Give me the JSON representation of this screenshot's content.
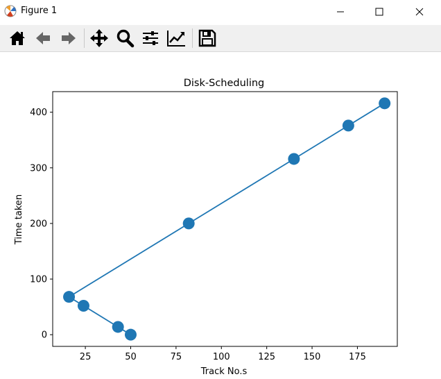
{
  "window": {
    "title": "Figure 1",
    "controls": [
      "minimize",
      "maximize",
      "close"
    ]
  },
  "toolbar": {
    "tools": [
      {
        "name": "home",
        "icon": "home-icon"
      },
      {
        "name": "back",
        "icon": "arrow-left-icon"
      },
      {
        "name": "forward",
        "icon": "arrow-right-icon"
      },
      {
        "name": "pan",
        "icon": "move-icon"
      },
      {
        "name": "zoom",
        "icon": "magnifier-icon"
      },
      {
        "name": "configure-subplots",
        "icon": "sliders-icon"
      },
      {
        "name": "edit-axis",
        "icon": "line-chart-icon"
      },
      {
        "name": "save",
        "icon": "floppy-disk-icon"
      }
    ]
  },
  "colors": {
    "series": "#1f77b4",
    "toolbar_bg": "#f0f0f0",
    "icon": "#000000",
    "icon_disabled": "#666666"
  },
  "chart_data": {
    "type": "line",
    "title": "Disk-Scheduling",
    "xlabel": "Track No.s",
    "ylabel": "Time taken",
    "xlim": [
      7,
      197
    ],
    "ylim": [
      -21,
      437
    ],
    "xticks": [
      25,
      50,
      75,
      100,
      125,
      150,
      175
    ],
    "yticks": [
      0,
      100,
      200,
      300,
      400
    ],
    "grid": false,
    "markers": true,
    "series": [
      {
        "x": [
          50,
          43,
          24,
          16,
          82,
          140,
          170,
          190
        ],
        "y": [
          0,
          14,
          52,
          68,
          200,
          316,
          376,
          416
        ]
      }
    ]
  }
}
